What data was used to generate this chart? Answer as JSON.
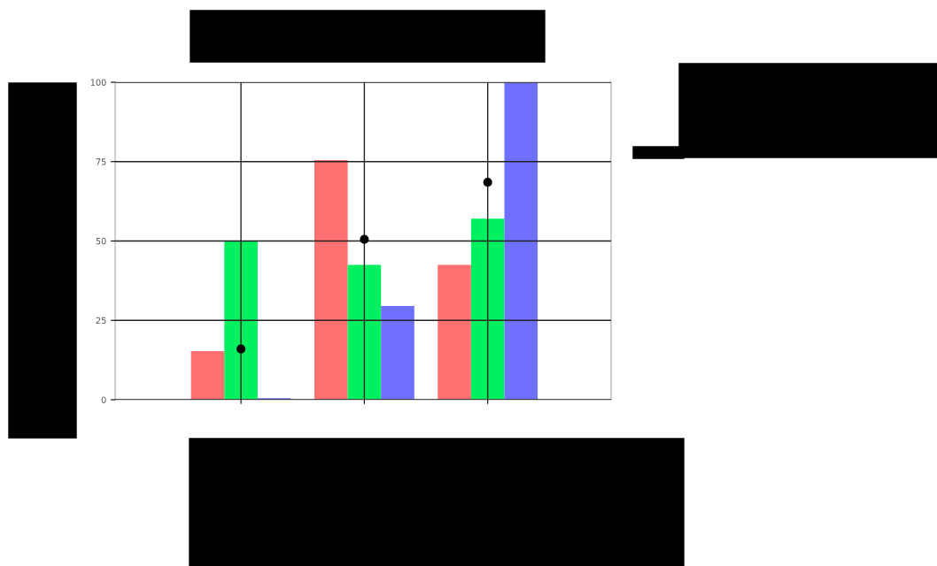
{
  "chart_data": {
    "type": "bar",
    "categories": [
      null,
      null,
      null
    ],
    "series": [
      {
        "color": "#ff7070",
        "values": [
          15.3,
          75.5,
          42.5
        ]
      },
      {
        "color": "#00f060",
        "values": [
          50,
          42.5,
          57
        ]
      },
      {
        "color": "#7070ff",
        "values": [
          0.5,
          29.5,
          100
        ]
      },
      {
        "type": "scatter",
        "color": "#000000",
        "values": [
          16,
          50.5,
          68.5
        ],
        "marker": "circle"
      }
    ],
    "ylim": [
      0,
      100
    ],
    "yticks": [
      0,
      25,
      50,
      75,
      100
    ],
    "grid": true,
    "legend": false
  }
}
